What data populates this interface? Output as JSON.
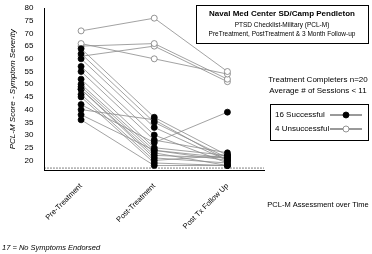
{
  "chart_data": {
    "type": "line",
    "title": "Naval Med Center SD/Camp Pendleton",
    "subtitle": [
      "PTSD Checklist-Military (PCL-M)",
      "PreTreatment, PostTreatment & 3 Month Follow-up"
    ],
    "annotations": [
      "Treatment Completers n=20",
      "Average # of Sessions < 11"
    ],
    "x_label": "PCL-M Assessment over Time",
    "y_label": "PCL-M Score - Symptom Severity",
    "categories": [
      "Pre-Treatment",
      "Post-Treatment",
      "Post Tx Follow Up"
    ],
    "series": [
      {
        "name": "16 Successful",
        "color": "#000000",
        "marker": "filled",
        "values": [
          [
            64,
            37,
            22
          ],
          [
            62,
            35,
            21
          ],
          [
            60,
            33,
            20
          ],
          [
            57,
            30,
            19
          ],
          [
            55,
            28,
            23
          ],
          [
            52,
            25,
            22
          ],
          [
            50,
            24,
            20
          ],
          [
            49,
            23,
            18
          ],
          [
            48,
            22,
            21
          ],
          [
            48,
            21,
            19
          ],
          [
            46,
            20,
            22
          ],
          [
            45,
            19,
            18
          ],
          [
            42,
            27,
            39
          ],
          [
            40,
            36,
            20
          ],
          [
            38,
            24,
            21
          ],
          [
            36,
            18,
            18
          ]
        ]
      },
      {
        "name": "4 Unsuccessful",
        "color": "#000000",
        "marker": "open",
        "values": [
          [
            71,
            76,
            55
          ],
          [
            66,
            60,
            54
          ],
          [
            65,
            66,
            52
          ],
          [
            61,
            65,
            51
          ]
        ]
      }
    ],
    "reference_line": {
      "value": 17,
      "label": "17 = No Symptoms Endorsed",
      "line_style": "dotted"
    },
    "ylim": [
      16,
      80
    ],
    "yticks": [
      20,
      25,
      30,
      35,
      40,
      45,
      50,
      55,
      60,
      65,
      70,
      75,
      80
    ],
    "grid": false,
    "legend": "right"
  }
}
